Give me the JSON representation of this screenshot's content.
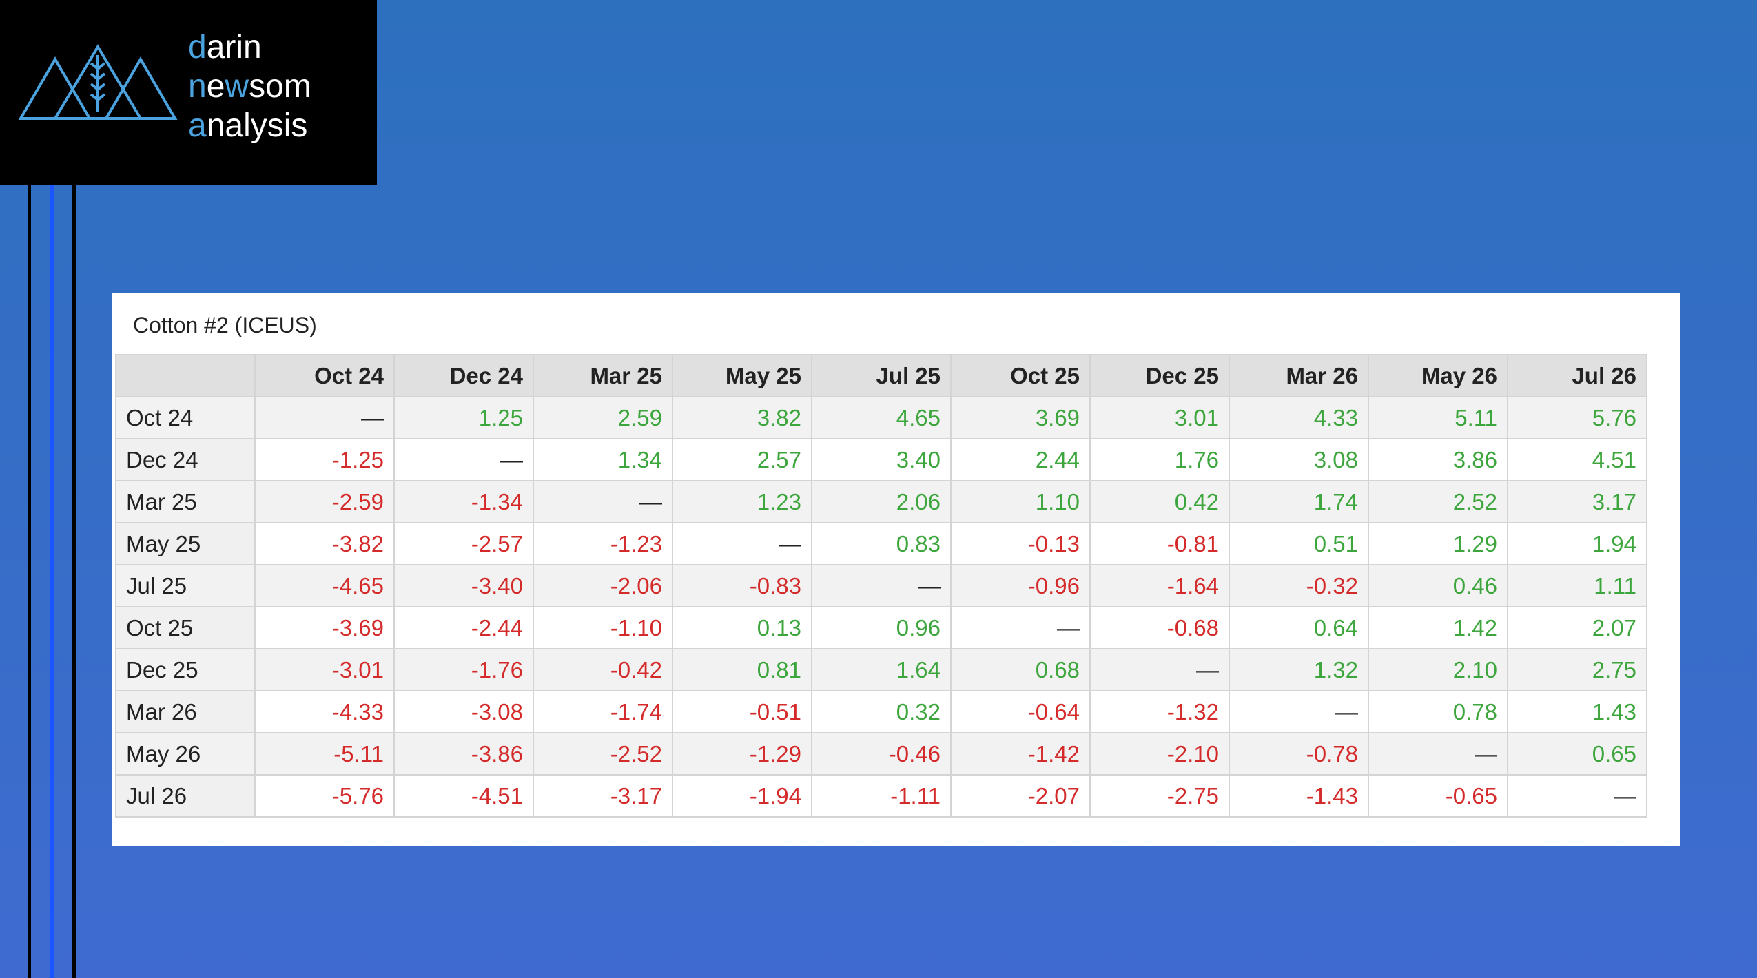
{
  "logo": {
    "lines": [
      [
        "d",
        "arin"
      ],
      [
        "n",
        "e",
        "w",
        "som"
      ],
      [
        "a",
        "nalysis"
      ]
    ],
    "accent_color": "#4aa3df"
  },
  "table": {
    "title": "Cotton #2 (ICEUS)",
    "positive_color": "#3ca63c",
    "negative_color": "#d42a2a",
    "columns": [
      "Oct 24",
      "Dec 24",
      "Mar 25",
      "May 25",
      "Jul 25",
      "Oct 25",
      "Dec 25",
      "Mar 26",
      "May 26",
      "Jul 26"
    ],
    "rows": [
      {
        "label": "Oct 24",
        "cells": [
          "—",
          "1.25",
          "2.59",
          "3.82",
          "4.65",
          "3.69",
          "3.01",
          "4.33",
          "5.11",
          "5.76"
        ]
      },
      {
        "label": "Dec 24",
        "cells": [
          "-1.25",
          "—",
          "1.34",
          "2.57",
          "3.40",
          "2.44",
          "1.76",
          "3.08",
          "3.86",
          "4.51"
        ]
      },
      {
        "label": "Mar 25",
        "cells": [
          "-2.59",
          "-1.34",
          "—",
          "1.23",
          "2.06",
          "1.10",
          "0.42",
          "1.74",
          "2.52",
          "3.17"
        ]
      },
      {
        "label": "May 25",
        "cells": [
          "-3.82",
          "-2.57",
          "-1.23",
          "—",
          "0.83",
          "-0.13",
          "-0.81",
          "0.51",
          "1.29",
          "1.94"
        ]
      },
      {
        "label": "Jul 25",
        "cells": [
          "-4.65",
          "-3.40",
          "-2.06",
          "-0.83",
          "—",
          "-0.96",
          "-1.64",
          "-0.32",
          "0.46",
          "1.11"
        ]
      },
      {
        "label": "Oct 25",
        "cells": [
          "-3.69",
          "-2.44",
          "-1.10",
          "0.13",
          "0.96",
          "—",
          "-0.68",
          "0.64",
          "1.42",
          "2.07"
        ]
      },
      {
        "label": "Dec 25",
        "cells": [
          "-3.01",
          "-1.76",
          "-0.42",
          "0.81",
          "1.64",
          "0.68",
          "—",
          "1.32",
          "2.10",
          "2.75"
        ]
      },
      {
        "label": "Mar 26",
        "cells": [
          "-4.33",
          "-3.08",
          "-1.74",
          "-0.51",
          "0.32",
          "-0.64",
          "-1.32",
          "—",
          "0.78",
          "1.43"
        ]
      },
      {
        "label": "May 26",
        "cells": [
          "-5.11",
          "-3.86",
          "-2.52",
          "-1.29",
          "-0.46",
          "-1.42",
          "-2.10",
          "-0.78",
          "—",
          "0.65"
        ]
      },
      {
        "label": "Jul 26",
        "cells": [
          "-5.76",
          "-4.51",
          "-3.17",
          "-1.94",
          "-1.11",
          "-2.07",
          "-2.75",
          "-1.43",
          "-0.65",
          "—"
        ]
      }
    ]
  }
}
